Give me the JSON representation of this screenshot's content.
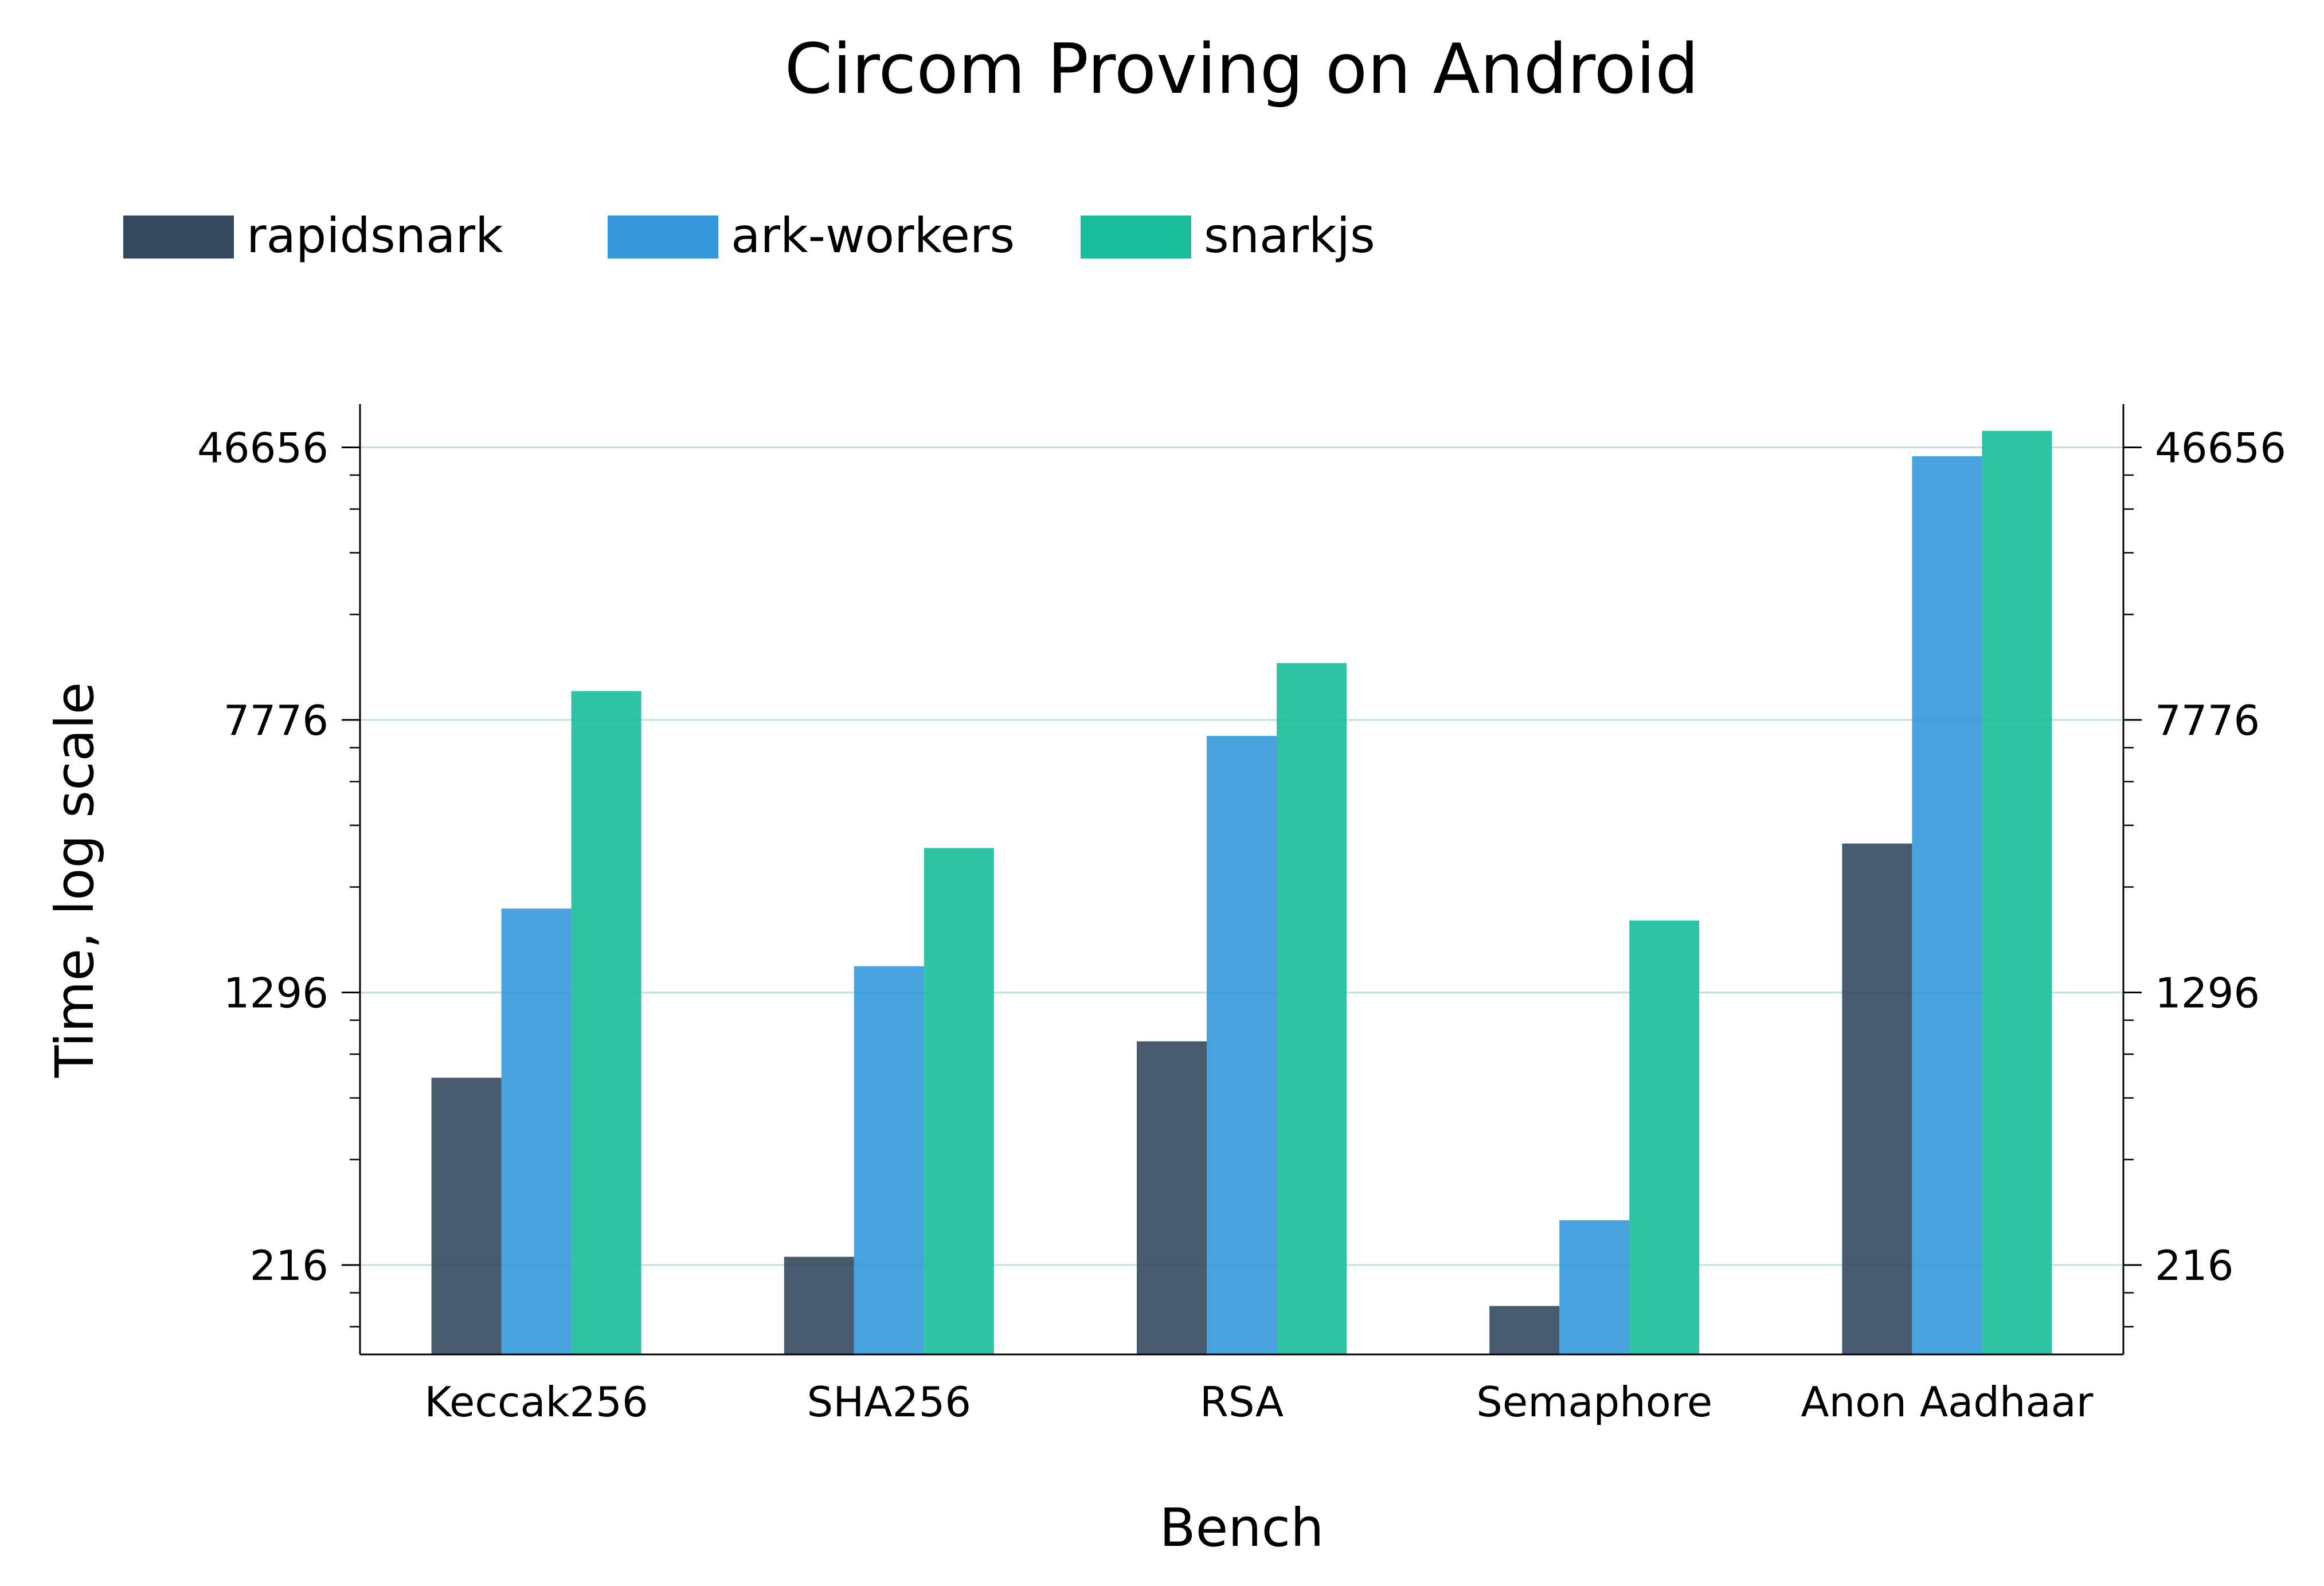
{
  "chart_data": {
    "type": "bar",
    "title": "Circom Proving on Android",
    "xlabel": "Bench",
    "ylabel": "Time, log scale",
    "yscale": "log",
    "ylim": [
      120,
      62000
    ],
    "yticks": [
      216,
      1296,
      7776,
      46656
    ],
    "ytick_labels": [
      "216",
      "1296",
      "7776",
      "46656"
    ],
    "grid": "horizontal",
    "legend_position": "top-left",
    "categories": [
      "Keccak256",
      "SHA256",
      "RSA",
      "Semaphore",
      "Anon Aadhaar"
    ],
    "series": [
      {
        "name": "rapidsnark",
        "color": "#34495e",
        "values": [
          740,
          228,
          940,
          165,
          3450
        ]
      },
      {
        "name": "ark-workers",
        "color": "#3498db",
        "values": [
          2250,
          1540,
          7000,
          290,
          44000
        ]
      },
      {
        "name": "snarkjs",
        "color": "#1abc9c",
        "values": [
          9400,
          3350,
          11300,
          2080,
          52000
        ]
      }
    ]
  }
}
